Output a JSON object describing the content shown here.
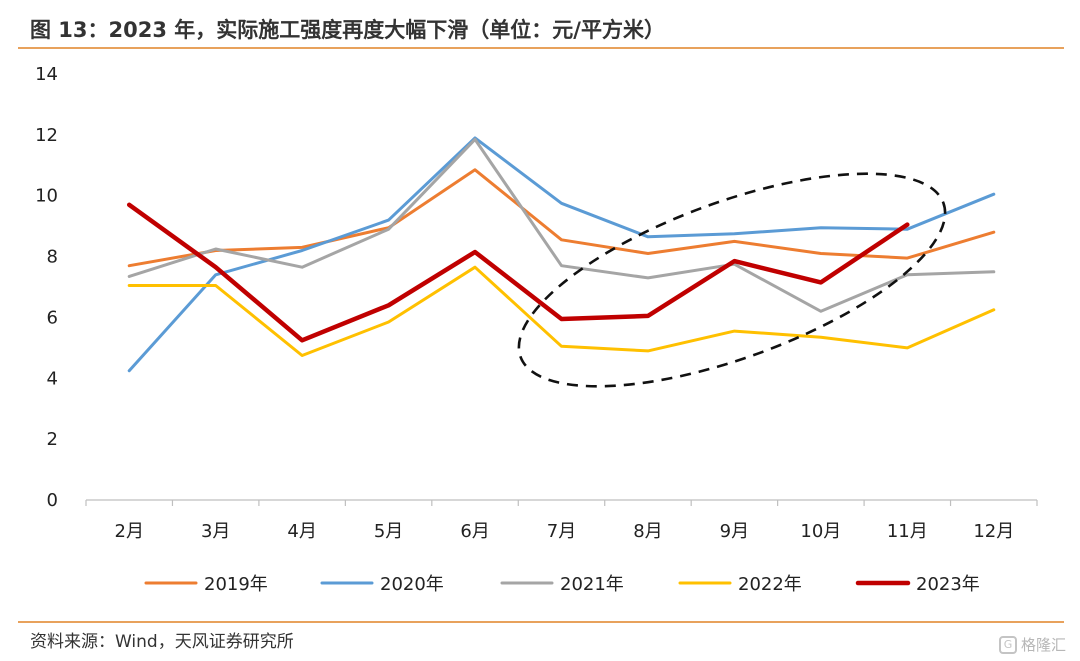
{
  "figure": {
    "title": "图 13：2023 年，实际施工强度再度大幅下滑（单位：元/平方米）",
    "source": "资料来源：Wind，天风证券研究所",
    "watermark": "格隆汇"
  },
  "chart_data": {
    "type": "line",
    "title": "图 13：2023 年，实际施工强度再度大幅下滑（单位：元/平方米）",
    "xlabel": "",
    "ylabel": "",
    "ylim": [
      0,
      14
    ],
    "yticks": [
      0,
      2,
      4,
      6,
      8,
      10,
      12,
      14
    ],
    "grid": false,
    "legend_position": "bottom",
    "categories": [
      "2月",
      "3月",
      "4月",
      "5月",
      "6月",
      "7月",
      "8月",
      "9月",
      "10月",
      "11月",
      "12月"
    ],
    "series": [
      {
        "name": "2019年",
        "color": "#ed7d31",
        "width": 3,
        "values": [
          7.7,
          8.2,
          8.3,
          8.95,
          10.85,
          8.55,
          8.1,
          8.5,
          8.1,
          7.95,
          8.8
        ]
      },
      {
        "name": "2020年",
        "color": "#5b9bd5",
        "width": 3,
        "values": [
          4.25,
          7.4,
          8.2,
          9.2,
          11.9,
          9.75,
          8.65,
          8.75,
          8.95,
          8.9,
          10.05
        ]
      },
      {
        "name": "2021年",
        "color": "#a5a5a5",
        "width": 3,
        "values": [
          7.35,
          8.25,
          7.65,
          8.9,
          11.85,
          7.7,
          7.3,
          7.75,
          6.2,
          7.4,
          7.5
        ]
      },
      {
        "name": "2022年",
        "color": "#ffc000",
        "width": 3,
        "values": [
          7.05,
          7.05,
          4.75,
          5.85,
          7.65,
          5.05,
          4.9,
          5.55,
          5.35,
          5.0,
          6.25
        ]
      },
      {
        "name": "2023年",
        "color": "#c00000",
        "width": 4.5,
        "values": [
          9.7,
          7.65,
          5.25,
          6.4,
          8.15,
          5.95,
          6.05,
          7.85,
          7.15,
          9.05,
          null
        ]
      }
    ],
    "annotation": "dashed-ellipse-highlight"
  }
}
